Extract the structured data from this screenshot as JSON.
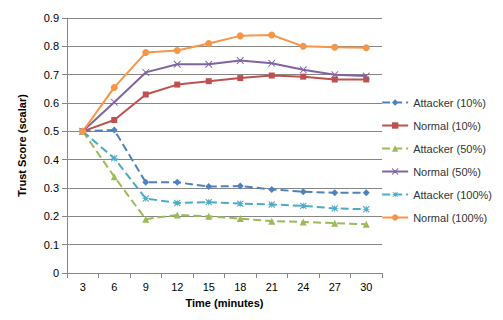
{
  "chart_data": {
    "type": "line",
    "x_label": "Time (minutes)",
    "y_label": "Trust Score (scalar)",
    "categories": [
      "3",
      "6",
      "9",
      "12",
      "15",
      "18",
      "21",
      "24",
      "27",
      "30"
    ],
    "ylim": [
      0,
      0.9
    ],
    "yticks": [
      0,
      0.1,
      0.2,
      0.3,
      0.4,
      0.5,
      0.6,
      0.7,
      0.8,
      0.9
    ],
    "grid": true,
    "legend": "right",
    "series": [
      {
        "name": "Attacker (10%)",
        "color": "#4f81bd",
        "marker": "diamond",
        "line_style": "dashed",
        "values": [
          0.5,
          0.505,
          0.32,
          0.32,
          0.305,
          0.307,
          0.295,
          0.287,
          0.283,
          0.283
        ]
      },
      {
        "name": "Normal (10%)",
        "color": "#c0504d",
        "marker": "square",
        "line_style": "solid",
        "values": [
          0.5,
          0.54,
          0.63,
          0.665,
          0.677,
          0.688,
          0.697,
          0.693,
          0.683,
          0.683
        ]
      },
      {
        "name": "Attacker (50%)",
        "color": "#9bbb59",
        "marker": "triangle",
        "line_style": "dashed",
        "values": [
          0.5,
          0.34,
          0.19,
          0.205,
          0.2,
          0.192,
          0.183,
          0.18,
          0.176,
          0.172
        ]
      },
      {
        "name": "Normal (50%)",
        "color": "#8064a2",
        "marker": "cross",
        "line_style": "solid",
        "values": [
          0.5,
          0.603,
          0.708,
          0.737,
          0.737,
          0.75,
          0.74,
          0.717,
          0.7,
          0.695
        ]
      },
      {
        "name": "Attacker (100%)",
        "color": "#4bacc6",
        "marker": "star",
        "line_style": "dashed",
        "values": [
          0.5,
          0.405,
          0.263,
          0.247,
          0.25,
          0.245,
          0.242,
          0.237,
          0.228,
          0.225
        ]
      },
      {
        "name": "Normal (100%)",
        "color": "#f79646",
        "marker": "circle",
        "line_style": "solid",
        "values": [
          0.5,
          0.655,
          0.778,
          0.785,
          0.81,
          0.837,
          0.84,
          0.8,
          0.797,
          0.795
        ]
      }
    ]
  }
}
